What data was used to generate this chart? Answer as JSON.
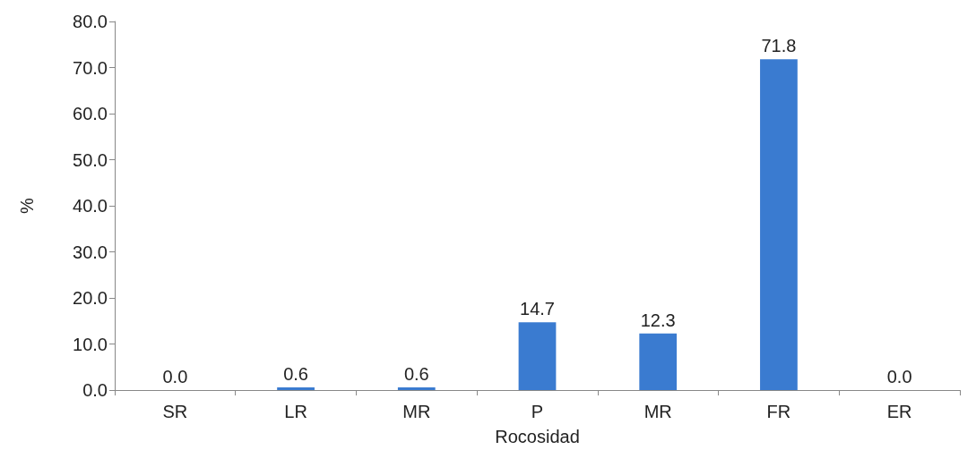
{
  "chart_data": {
    "type": "bar",
    "xlabel": "Rocosidad",
    "ylabel": "%",
    "categories": [
      "SR",
      "LR",
      "MR",
      "P",
      "MR",
      "FR",
      "ER"
    ],
    "values": [
      0.0,
      0.6,
      0.6,
      14.7,
      12.3,
      71.8,
      0.0
    ],
    "value_labels": [
      "0.0",
      "0.6",
      "0.6",
      "14.7",
      "12.3",
      "71.8",
      "0.0"
    ],
    "color": "#3a7bd0",
    "ylim": [
      0,
      80
    ],
    "yticks": [
      {
        "value": 0,
        "label": "0.0"
      },
      {
        "value": 10,
        "label": "10.0"
      },
      {
        "value": 20,
        "label": "20.0"
      },
      {
        "value": 30,
        "label": "30.0"
      },
      {
        "value": 40,
        "label": "40.0"
      },
      {
        "value": 50,
        "label": "50.0"
      },
      {
        "value": 60,
        "label": "60.0"
      },
      {
        "value": 70,
        "label": "70.0"
      },
      {
        "value": 80,
        "label": "80.0"
      }
    ],
    "grid": false
  }
}
